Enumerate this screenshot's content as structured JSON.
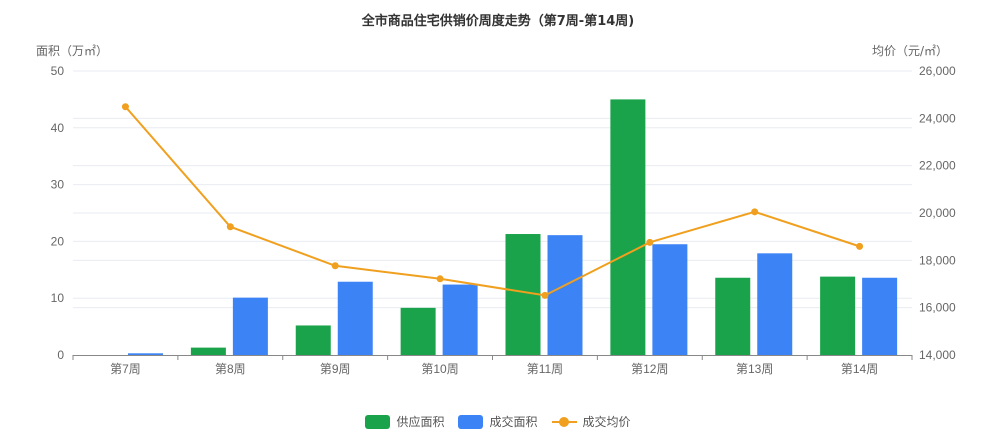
{
  "title": "全市商品住宅供销价周度走势（第7周-第14周)",
  "left_axis_name": "面积（万㎡）",
  "right_axis_name": "均价（元/㎡）",
  "colors": {
    "supply": "#1aa34a",
    "transaction": "#3c83f5",
    "price": "#f0a01e",
    "grid": "#e8ebf0",
    "axis": "#888888"
  },
  "legend": [
    {
      "label": "供应面积",
      "type": "bar",
      "color": "#1aa34a"
    },
    {
      "label": "成交面积",
      "type": "bar",
      "color": "#3c83f5"
    },
    {
      "label": "成交均价",
      "type": "line",
      "color": "#f0a01e"
    }
  ],
  "chart_data": {
    "type": "bar",
    "title": "全市商品住宅供销价周度走势（第7周-第14周)",
    "xlabel": "",
    "ylabel": "面积（万㎡）",
    "y2label": "均价（元/㎡）",
    "categories": [
      "第7周",
      "第8周",
      "第9周",
      "第10周",
      "第11周",
      "第12周",
      "第13周",
      "第14周"
    ],
    "ylim": [
      0,
      50
    ],
    "yticks": [
      0,
      10,
      20,
      30,
      40,
      50
    ],
    "y2lim": [
      14000,
      26000
    ],
    "y2ticks": [
      "14,000",
      "16,000",
      "18,000",
      "20,000",
      "22,000",
      "24,000",
      "26,000"
    ],
    "grid": true,
    "legend_position": "bottom",
    "series": [
      {
        "name": "供应面积",
        "type": "bar",
        "axis": "left",
        "values": [
          0,
          1.3,
          5.2,
          8.3,
          21.3,
          45.0,
          13.6,
          13.8
        ]
      },
      {
        "name": "成交面积",
        "type": "bar",
        "axis": "left",
        "values": [
          0.3,
          10.1,
          12.9,
          12.4,
          21.1,
          19.5,
          17.9,
          13.6
        ]
      },
      {
        "name": "成交均价",
        "type": "line",
        "axis": "right",
        "values": [
          24490,
          19420,
          17770,
          17220,
          16520,
          18760,
          20050,
          18590
        ]
      }
    ]
  }
}
